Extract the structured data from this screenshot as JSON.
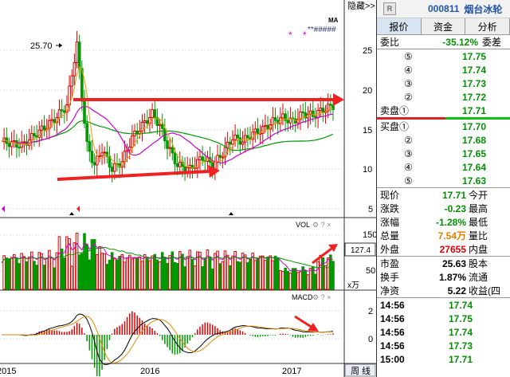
{
  "chart": {
    "hide_button": "隐藏>>",
    "ma_label": "MA",
    "peak_label": "25.70",
    "price_axis": [
      "25",
      "20",
      "15",
      "10",
      "5"
    ],
    "vol_label": "VOL",
    "vol_axis": [
      "150",
      "50"
    ],
    "vol_unit": "x万",
    "vol_value": "127.4",
    "macd_label": "MACD",
    "macd_axis": [
      "2",
      "0"
    ],
    "years": [
      "2015",
      "2016",
      "2017"
    ],
    "period_button": "周 线",
    "colors": {
      "up": "#e00000",
      "down": "#009900",
      "ma_slow": "#009900",
      "ma_mid": "#cc00cc",
      "arrow": "#ee2222"
    }
  },
  "chart_data": {
    "type": "candlestick",
    "peak": 25.7,
    "price_axis_ticks": [
      25,
      20,
      15,
      10,
      5
    ],
    "volume_axis_ticks": [
      150,
      50
    ],
    "macd_axis_ticks": [
      2,
      0
    ],
    "x_ticks": [
      "2015",
      "2016",
      "2017"
    ]
  },
  "panel": {
    "r_badge": "R",
    "code": "000811",
    "name": "烟台冰轮",
    "tabs": [
      "报价",
      "资金",
      "分析"
    ],
    "weibi_label": "委比",
    "weibi_value": "-35.12%",
    "weicha_label": "委差",
    "sell": [
      {
        "lvl": "⑤",
        "price": "17.75"
      },
      {
        "lvl": "④",
        "price": "17.74"
      },
      {
        "lvl": "③",
        "price": "17.73"
      },
      {
        "lvl": "②",
        "price": "17.72"
      },
      {
        "lvl": "卖盘①",
        "price": "17.71"
      }
    ],
    "buy": [
      {
        "lvl": "买盘①",
        "price": "17.70"
      },
      {
        "lvl": "②",
        "price": "17.68"
      },
      {
        "lvl": "③",
        "price": "17.65"
      },
      {
        "lvl": "④",
        "price": "17.64"
      },
      {
        "lvl": "⑤",
        "price": "17.63"
      }
    ],
    "stats1": [
      {
        "k": "现价",
        "v": "17.71",
        "k2": "今开",
        "color": "green"
      },
      {
        "k": "涨跌",
        "v": "-0.23",
        "k2": "最高",
        "color": "green"
      },
      {
        "k": "涨幅",
        "v": "-1.28%",
        "k2": "最低",
        "color": "green"
      },
      {
        "k": "总量",
        "v": "7.54万",
        "k2": "量比",
        "color": "orange"
      },
      {
        "k": "外盘",
        "v": "27655",
        "k2": "内盘",
        "color": "red"
      }
    ],
    "stats2": [
      {
        "k": "市盈",
        "v": "25.63",
        "k2": "股本",
        "color": "blk"
      },
      {
        "k": "换手",
        "v": "1.87%",
        "k2": "流通",
        "color": "blk"
      },
      {
        "k": "净资",
        "v": "5.22",
        "k2": "收益(四",
        "color": "blk"
      }
    ],
    "ticks": [
      {
        "t": "14:56",
        "p": "17.74"
      },
      {
        "t": "14:56",
        "p": "17.75"
      },
      {
        "t": "14:56",
        "p": "17.74"
      },
      {
        "t": "14:56",
        "p": "17.73"
      },
      {
        "t": "15:00",
        "p": "17.71"
      }
    ]
  }
}
